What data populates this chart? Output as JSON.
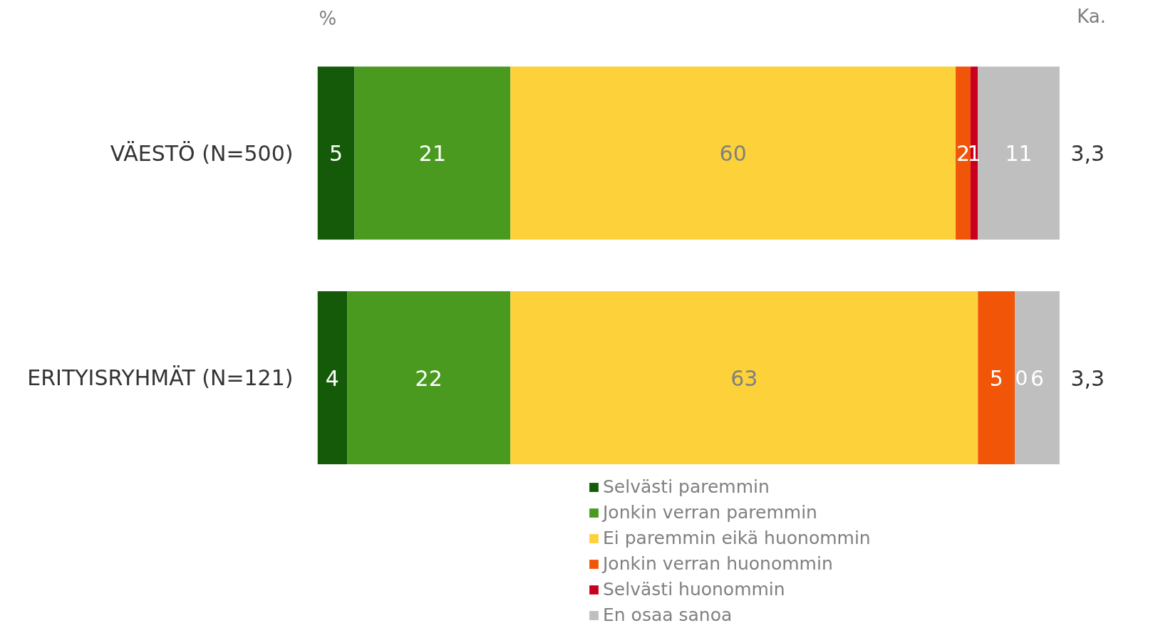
{
  "chart_data": {
    "type": "bar",
    "orientation": "horizontal",
    "stacked": true,
    "data_labels": true,
    "legend": "bottom",
    "categories": [
      "VÄESTÖ (N=500)",
      "ERITYISRYHMÄT (N=121)"
    ],
    "series": [
      {
        "name": "Selvästi paremmin",
        "color": "#145a08",
        "values": [
          5,
          4
        ]
      },
      {
        "name": "Jonkin verran paremmin",
        "color": "#4a9a20",
        "values": [
          21,
          22
        ]
      },
      {
        "name": "Ei paremmin eikä huonommin",
        "color": "#fdd13a",
        "values": [
          60,
          63
        ]
      },
      {
        "name": "Jonkin verran huonommin",
        "color": "#f05508",
        "values": [
          2,
          5
        ]
      },
      {
        "name": "Selvästi huonommin",
        "color": "#c8001e",
        "values": [
          1,
          0
        ]
      },
      {
        "name": "En osaa sanoa",
        "color": "#bfbfbf",
        "values": [
          11,
          6
        ]
      }
    ],
    "annotations": [
      "%",
      "Ka.",
      "3,3",
      "3,3"
    ]
  }
}
